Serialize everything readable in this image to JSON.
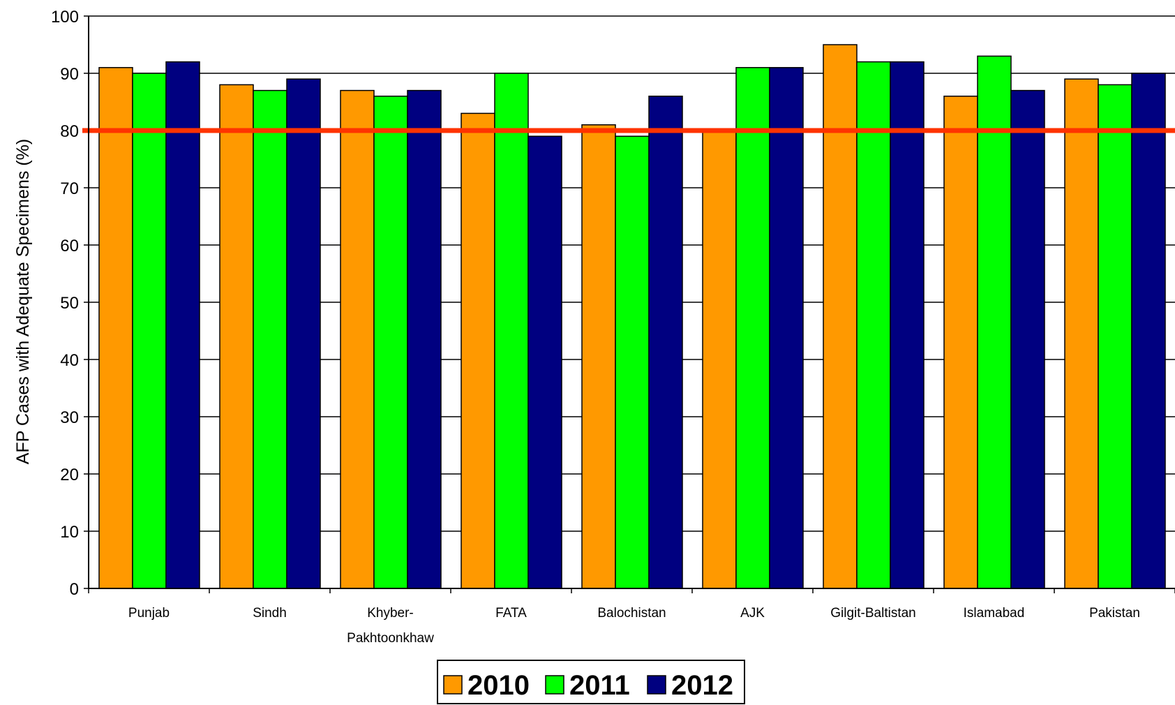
{
  "chart_data": {
    "type": "bar",
    "categories": [
      "Punjab",
      "Sindh",
      "Khyber-Pakhtoonkhaw",
      "FATA",
      "Balochistan",
      "AJK",
      "Gilgit-Baltistan",
      "Islamabad",
      "Pakistan"
    ],
    "category_lines": [
      [
        "Punjab"
      ],
      [
        "Sindh"
      ],
      [
        "Khyber-",
        "Pakhtoonkhaw"
      ],
      [
        "FATA"
      ],
      [
        "Balochistan"
      ],
      [
        "AJK"
      ],
      [
        "Gilgit-Baltistan"
      ],
      [
        "Islamabad"
      ],
      [
        "Pakistan"
      ]
    ],
    "series": [
      {
        "name": "2010",
        "color": "#FF9900",
        "values": [
          91,
          88,
          87,
          83,
          81,
          80,
          95,
          86,
          89
        ]
      },
      {
        "name": "2011",
        "color": "#00FF00",
        "values": [
          90,
          87,
          86,
          90,
          79,
          91,
          92,
          93,
          88
        ]
      },
      {
        "name": "2012",
        "color": "#000080",
        "values": [
          92,
          89,
          87,
          79,
          86,
          91,
          92,
          87,
          90
        ]
      }
    ],
    "ylabel": "AFP Cases with Adequate Specimens (%)",
    "xlabel": "",
    "title": "",
    "ylim": [
      0,
      100
    ],
    "yticks": [
      0,
      10,
      20,
      30,
      40,
      50,
      60,
      70,
      80,
      90,
      100
    ],
    "target_line": {
      "value": 80,
      "color": "#FF3300"
    },
    "grid": true,
    "legend_position": "bottom-center"
  }
}
